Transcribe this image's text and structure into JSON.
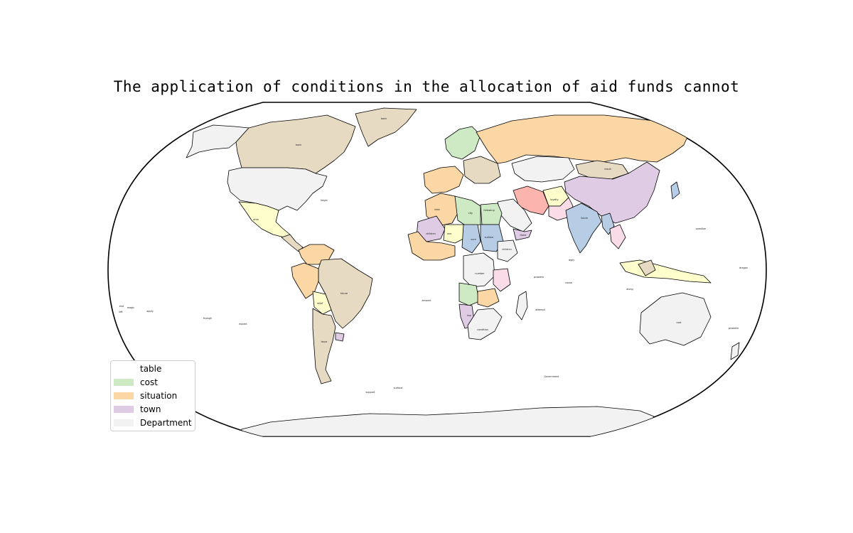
{
  "title": "The application of conditions in the allocation of aid funds cannot",
  "legend": {
    "title": "table",
    "items": [
      {
        "label": "cost",
        "color": "#cdeac4"
      },
      {
        "label": "situation",
        "color": "#fbd7a6"
      },
      {
        "label": "town",
        "color": "#dfcce4"
      },
      {
        "label": "Department",
        "color": "#f2f2f2"
      }
    ]
  },
  "palette": {
    "cost": "#cdeac4",
    "situation": "#fbd7a6",
    "town": "#dfcce4",
    "department": "#f2f2f2",
    "tan": "#e6dac2",
    "blue": "#b7cde6",
    "yellow": "#fefecc",
    "pink": "#fadbe8",
    "red": "#fbb5ae"
  },
  "map": {
    "projection": "robinson",
    "country_labels": [
      {
        "name": "Canada",
        "text": "bank",
        "category": "tan"
      },
      {
        "name": "United States",
        "text": "",
        "category": "department"
      },
      {
        "name": "Mexico",
        "text": "area",
        "category": "yellow"
      },
      {
        "name": "Brazil",
        "text": "future",
        "category": "tan"
      },
      {
        "name": "Peru",
        "text": "",
        "category": "situation"
      },
      {
        "name": "Bolivia",
        "text": "relief",
        "category": "yellow"
      },
      {
        "name": "Argentina",
        "text": "issue",
        "category": "tan"
      },
      {
        "name": "Uruguay",
        "text": "",
        "category": "town"
      },
      {
        "name": "Greenland",
        "text": "bank",
        "category": "tan"
      },
      {
        "name": "Russia",
        "text": "",
        "category": "situation"
      },
      {
        "name": "Kazakhstan",
        "text": "",
        "category": "department"
      },
      {
        "name": "Mongolia",
        "text": "result",
        "category": "tan"
      },
      {
        "name": "China",
        "text": "",
        "category": "town"
      },
      {
        "name": "India",
        "text": "South",
        "category": "blue"
      },
      {
        "name": "Iran",
        "text": "",
        "category": "red"
      },
      {
        "name": "Saudi Arabia",
        "text": "",
        "category": "department"
      },
      {
        "name": "Algeria",
        "text": "idea",
        "category": "situation"
      },
      {
        "name": "Libya",
        "text": "city",
        "category": "cost"
      },
      {
        "name": "Egypt",
        "text": "following",
        "category": "cost"
      },
      {
        "name": "Sudan",
        "text": "surface",
        "category": "blue"
      },
      {
        "name": "Chad",
        "text": "sure",
        "category": "blue"
      },
      {
        "name": "Mali",
        "text": "children",
        "category": "town"
      },
      {
        "name": "Niger",
        "text": "one",
        "category": "yellow"
      },
      {
        "name": "Ethiopia",
        "text": "children",
        "category": "department"
      },
      {
        "name": "DR Congo",
        "text": "number",
        "category": "department"
      },
      {
        "name": "Angola",
        "text": "",
        "category": "cost"
      },
      {
        "name": "Namibia",
        "text": "top",
        "category": "town"
      },
      {
        "name": "South Africa",
        "text": "condition",
        "category": "department"
      },
      {
        "name": "Tanzania",
        "text": "",
        "category": "pink"
      },
      {
        "name": "Madagascar",
        "text": "",
        "category": "department"
      },
      {
        "name": "Australia",
        "text": "cost",
        "category": "department"
      },
      {
        "name": "Antarctica",
        "text": "",
        "category": "department"
      },
      {
        "name": "Indonesia",
        "text": "",
        "category": "yellow"
      },
      {
        "name": "Pakistan",
        "text": "loyalty",
        "category": "pink"
      },
      {
        "name": "Afghanistan",
        "text": "",
        "category": "yellow"
      },
      {
        "name": "Myanmar",
        "text": "",
        "category": "blue"
      },
      {
        "name": "Thailand",
        "text": "",
        "category": "pink"
      },
      {
        "name": "Yemen",
        "text": "there",
        "category": "town"
      },
      {
        "name": "Japan",
        "text": "",
        "category": "blue"
      }
    ],
    "ocean_labels": [
      {
        "text": "begin"
      },
      {
        "text": "problem"
      },
      {
        "text": "amount"
      },
      {
        "text": "attempt"
      },
      {
        "text": "cause"
      },
      {
        "text": "surface"
      },
      {
        "text": "support"
      },
      {
        "text": "Government"
      },
      {
        "text": "reply"
      },
      {
        "text": "end"
      },
      {
        "text": "question"
      },
      {
        "text": "problem"
      },
      {
        "text": "apply"
      },
      {
        "text": "magic"
      },
      {
        "text": "left"
      },
      {
        "text": "along"
      },
      {
        "text": "dragon"
      },
      {
        "text": "expect"
      },
      {
        "text": "though"
      }
    ]
  }
}
